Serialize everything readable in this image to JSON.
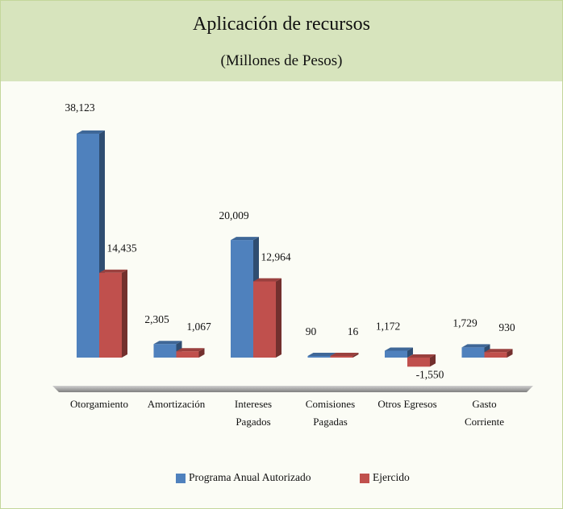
{
  "chart_data": {
    "type": "bar3d",
    "title": "Aplicación de recursos",
    "subtitle": "(Millones de Pesos)",
    "categories": [
      "Otorgamiento",
      "Amortización",
      "Intereses\nPagados",
      "Comisiones\nPagadas",
      "Otros Egresos",
      "Gasto\nCorriente"
    ],
    "series": [
      {
        "name": "Programa Anual Autorizado",
        "color": "#4f81bd",
        "values": [
          38123,
          2305,
          20009,
          90,
          1172,
          1729
        ],
        "value_labels": [
          "38,123",
          "2,305",
          "20,009",
          "90",
          "1,172",
          "1,729"
        ]
      },
      {
        "name": "Ejercido",
        "color": "#c0504d",
        "values": [
          14435,
          1067,
          12964,
          16,
          -1550,
          930
        ],
        "value_labels": [
          "14,435",
          "1,067",
          "12,964",
          "16",
          "-1,550",
          "930"
        ]
      }
    ],
    "legend": "bottom"
  }
}
